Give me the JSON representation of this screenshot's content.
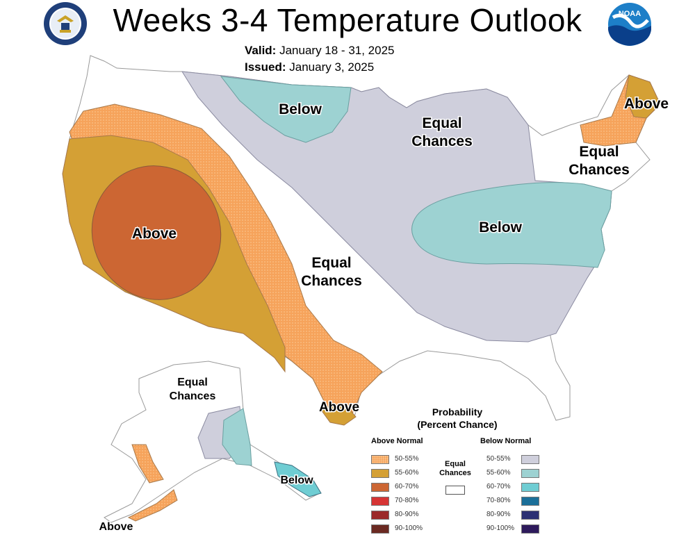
{
  "header": {
    "title": "Weeks 3-4 Temperature Outlook",
    "valid_label": "Valid:",
    "valid_value": "January 18 - 31, 2025",
    "issued_label": "Issued:",
    "issued_value": "January 3, 2025"
  },
  "logos": {
    "left": "department-of-commerce-seal",
    "right": "noaa-logo",
    "noaa_text": "NOAA"
  },
  "map": {
    "labels": {
      "west_above": "Above",
      "north_below": "Below",
      "midwest_ec_1": "Equal",
      "midwest_ec_2": "Chances",
      "northeast_above": "Above",
      "northeast_ec_1": "Equal",
      "northeast_ec_2": "Chances",
      "east_below": "Below",
      "central_ec_1": "Equal",
      "central_ec_2": "Chances",
      "texas_above": "Above",
      "alaska_ec_1": "Equal",
      "alaska_ec_2": "Chances",
      "alaska_below": "Below",
      "alaska_above": "Above"
    }
  },
  "legend": {
    "title_line1": "Probability",
    "title_line2": "(Percent Chance)",
    "above_header": "Above Normal",
    "below_header": "Below Normal",
    "equal_line1": "Equal",
    "equal_line2": "Chances",
    "above_rows": [
      {
        "label": "50-55%",
        "color": "#f6a35b"
      },
      {
        "label": "55-60%",
        "color": "#d4a035"
      },
      {
        "label": "60-70%",
        "color": "#cc6633"
      },
      {
        "label": "70-80%",
        "color": "#d63434"
      },
      {
        "label": "80-90%",
        "color": "#9b2a2a"
      },
      {
        "label": "90-100%",
        "color": "#6b2a22"
      }
    ],
    "below_rows": [
      {
        "label": "50-55%",
        "color": "#cfcfdc"
      },
      {
        "label": "55-60%",
        "color": "#9dd2d2"
      },
      {
        "label": "60-70%",
        "color": "#6fcdd3"
      },
      {
        "label": "70-80%",
        "color": "#1b6f99"
      },
      {
        "label": "80-90%",
        "color": "#2c3173"
      },
      {
        "label": "90-100%",
        "color": "#2e1a5c"
      }
    ]
  }
}
